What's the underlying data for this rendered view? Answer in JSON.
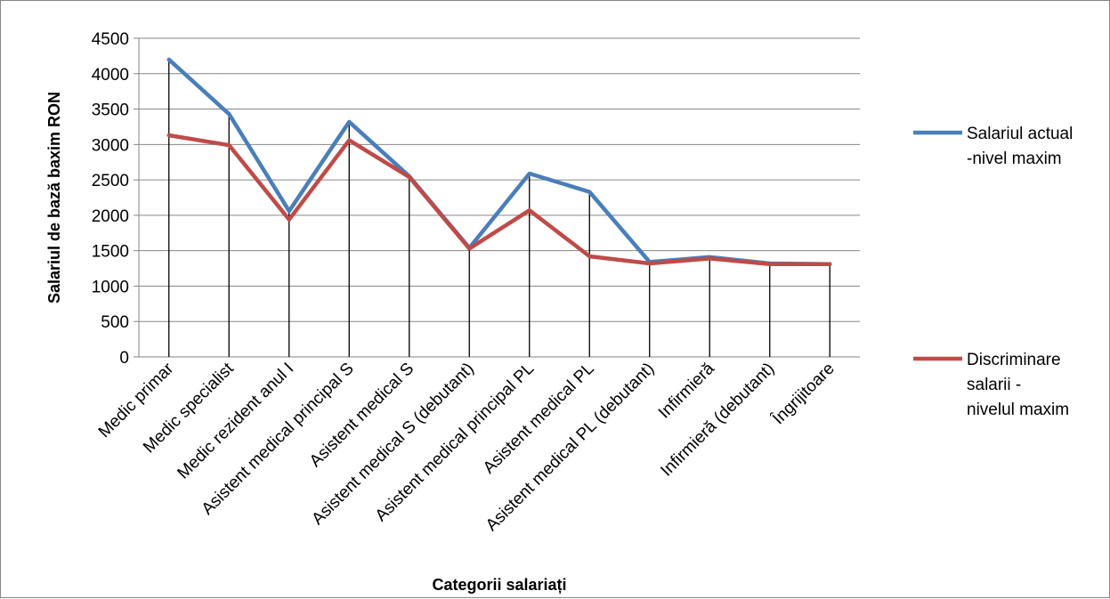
{
  "chart_data": {
    "type": "line",
    "title": "",
    "xlabel": "Categorii salariați",
    "ylabel": "Salariul de bază baxim RON",
    "ylim": [
      0,
      4500
    ],
    "yticks": [
      0,
      500,
      1000,
      1500,
      2000,
      2500,
      3000,
      3500,
      4000,
      4500
    ],
    "grid": "horizontal",
    "legend_position": "right",
    "categories": [
      "Medic primar",
      "Medic specialist",
      "Medic rezident anul I",
      "Asistent medical principal S",
      "Asistent medical S",
      "Asistent medical S (debutant)",
      "Asistent medical principal PL",
      "Asistent medical PL",
      "Asistent medical PL (debutant)",
      "Infirmieră",
      "Infirmieră (debutant)",
      "Îngrijitoare"
    ],
    "series": [
      {
        "name": "Salariul actual -nivel maxim",
        "legend_lines": [
          "Salariul actual",
          "-nivel maxim"
        ],
        "color": "#4a7ebb",
        "values": [
          4200,
          3430,
          2060,
          3320,
          2550,
          1540,
          2590,
          2330,
          1340,
          1410,
          1320,
          1310
        ]
      },
      {
        "name": "Discriminare salarii - nivelul maxim",
        "legend_lines": [
          "Discriminare",
          "salarii -",
          "nivelul maxim"
        ],
        "color": "#be4b48",
        "values": [
          3130,
          2990,
          1940,
          3060,
          2540,
          1530,
          2070,
          1420,
          1320,
          1390,
          1310,
          1310
        ]
      }
    ]
  }
}
